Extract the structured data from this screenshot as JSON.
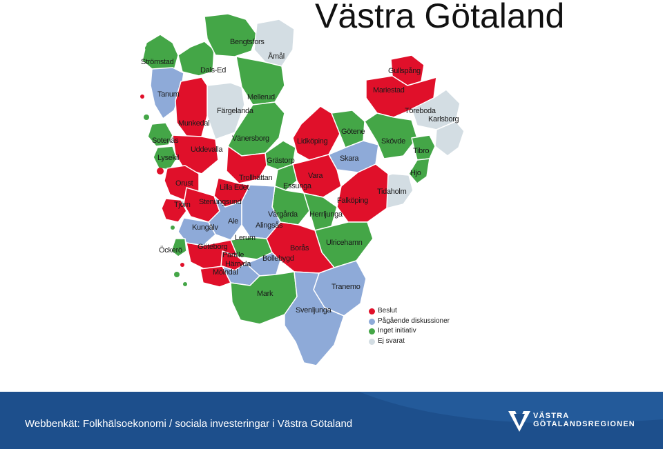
{
  "title": "Västra Götaland",
  "colors": {
    "beslut": "#e0102a",
    "pagaende": "#8eaad8",
    "inget": "#44a647",
    "ej_svarat": "#d3dde3",
    "footer_bg": "#1d4f8c"
  },
  "legend": [
    {
      "label": "Beslut",
      "status": "beslut"
    },
    {
      "label": "Pågående diskussioner",
      "status": "pagaende"
    },
    {
      "label": "Inget initiativ",
      "status": "inget"
    },
    {
      "label": "Ej svarat",
      "status": "ej_svarat"
    }
  ],
  "municipalities": [
    {
      "name": "Strömstad",
      "status": "inget"
    },
    {
      "name": "Dals-Ed",
      "status": "inget"
    },
    {
      "name": "Bengtsfors",
      "status": "inget"
    },
    {
      "name": "Åmål",
      "status": "ej_svarat"
    },
    {
      "name": "Tanum",
      "status": "pagaende"
    },
    {
      "name": "Mellerud",
      "status": "inget"
    },
    {
      "name": "Färgelanda",
      "status": "ej_svarat"
    },
    {
      "name": "Munkedal",
      "status": "beslut"
    },
    {
      "name": "Sotenäs",
      "status": "inget"
    },
    {
      "name": "Uddevalla",
      "status": "beslut"
    },
    {
      "name": "Lysekil",
      "status": "inget"
    },
    {
      "name": "Vänersborg",
      "status": "inget"
    },
    {
      "name": "Grästorp",
      "status": "inget"
    },
    {
      "name": "Lidköping",
      "status": "beslut"
    },
    {
      "name": "Götene",
      "status": "inget"
    },
    {
      "name": "Skara",
      "status": "pagaende"
    },
    {
      "name": "Gullspång",
      "status": "beslut"
    },
    {
      "name": "Mariestad",
      "status": "beslut"
    },
    {
      "name": "Töreboda",
      "status": "ej_svarat"
    },
    {
      "name": "Karlsborg",
      "status": "ej_svarat"
    },
    {
      "name": "Skövde",
      "status": "inget"
    },
    {
      "name": "Tibro",
      "status": "inget"
    },
    {
      "name": "Hjo",
      "status": "inget"
    },
    {
      "name": "Tidaholm",
      "status": "ej_svarat"
    },
    {
      "name": "Orust",
      "status": "beslut"
    },
    {
      "name": "Trollhättan",
      "status": "beslut"
    },
    {
      "name": "Lilla Edet",
      "status": "beslut"
    },
    {
      "name": "Essunga",
      "status": "inget"
    },
    {
      "name": "Vara",
      "status": "beslut"
    },
    {
      "name": "Falköping",
      "status": "beslut"
    },
    {
      "name": "Tjörn",
      "status": "beslut"
    },
    {
      "name": "Stenungsund",
      "status": "beslut"
    },
    {
      "name": "Vårgårda",
      "status": "inget"
    },
    {
      "name": "Herrljunga",
      "status": "inget"
    },
    {
      "name": "Ale",
      "status": "pagaende"
    },
    {
      "name": "Alingsås",
      "status": "pagaende"
    },
    {
      "name": "Kungälv",
      "status": "pagaende"
    },
    {
      "name": "Lerum",
      "status": "inget"
    },
    {
      "name": "Ulricehamn",
      "status": "inget"
    },
    {
      "name": "Öckerö",
      "status": "inget"
    },
    {
      "name": "Göteborg",
      "status": "beslut"
    },
    {
      "name": "Borås",
      "status": "beslut"
    },
    {
      "name": "Partille",
      "status": "beslut"
    },
    {
      "name": "Bollebygd",
      "status": "pagaende"
    },
    {
      "name": "Härryda",
      "status": "pagaende"
    },
    {
      "name": "Mölndal",
      "status": "beslut"
    },
    {
      "name": "Tranemo",
      "status": "pagaende"
    },
    {
      "name": "Mark",
      "status": "inget"
    },
    {
      "name": "Svenljunga",
      "status": "pagaende"
    }
  ],
  "footer": {
    "text": "Webbenkät: Folkhälsoekonomi / sociala investeringar i Västra Götaland",
    "logo_line1": "VÄSTRA",
    "logo_line2": "GÖTALANDSREGIONEN"
  }
}
